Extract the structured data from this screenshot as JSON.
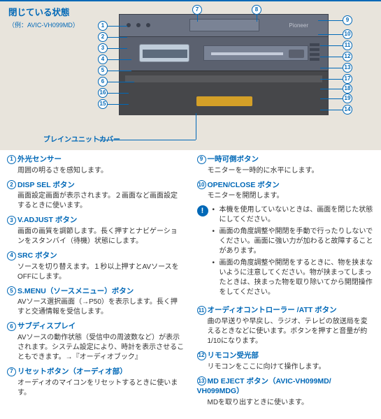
{
  "colors": {
    "accent": "#0068b7",
    "bg_top": "#e8e4dc",
    "device": "#5b616f",
    "device_dark": "#46474a"
  },
  "header": {
    "title": "閉じている状態",
    "subtitle": "（例：AVIC-VH099MD）",
    "brain_cover_label": "ブレインユニットカバー",
    "logo_text": "Pioneer"
  },
  "markers": [
    "1",
    "2",
    "3",
    "4",
    "5",
    "6",
    "7",
    "8",
    "9",
    "10",
    "11",
    "12",
    "13",
    "14",
    "15",
    "16",
    "17",
    "18",
    "19"
  ],
  "left": [
    {
      "n": "1",
      "title": "外光センサー",
      "body": "周囲の明るさを感知します。"
    },
    {
      "n": "2",
      "title": "DISP SEL ボタン",
      "body": "画面設定画面が表示されます。２画面など画面設定するときに使います。"
    },
    {
      "n": "3",
      "title": "V.ADJUST ボタン",
      "body": "画面の画質を調節します。長く押すとナビゲーションをスタンバイ（待機）状態にします。"
    },
    {
      "n": "4",
      "title": "SRC ボタン",
      "body": "ソースを切り替えます。１秒以上押すとAVソースをOFFにします。"
    },
    {
      "n": "5",
      "title": "S.MENU（ソースメニュー）ボタン",
      "body": "AVソース選択画面（→P50）を表示します。長く押すと交通情報を受信します。"
    },
    {
      "n": "6",
      "title": "サブディスプレイ",
      "body": "AVソースの動作状態（受信中の周波数など）が表示されます。システム設定により、時計を表示させることもできます。→『オーディオブック』"
    },
    {
      "n": "7",
      "title": "リセットボタン（オーディオ部）",
      "body": "オーディオのマイコンをリセットするときに使います。"
    }
  ],
  "right": [
    {
      "n": "9",
      "title": "一時可倒ボタン",
      "body": "モニターを一時的に水平にします。"
    },
    {
      "n": "10",
      "title": "OPEN/CLOSE ボタン",
      "body": "モニターを開閉します。"
    }
  ],
  "note": [
    "本機を使用していないときは、画面を閉じた状態にしてください。",
    "画面の角度調整や開閉を手動で行ったりしないでください。画面に強い力が加わると故障することがあります。",
    "画面の角度調整や開閉をするときに、物を挟まないように注意してください。物が挟まってしまったときは、挟まった物を取り除いてから開閉操作をしてください。"
  ],
  "right2": [
    {
      "n": "11",
      "title": "オーディオコントローラー /ATT ボタン",
      "body": "曲の早送りや早戻し、ラジオ、テレビの放送局を変えるときなどに使います。ボタンを押すと音量が約1/10になります。"
    },
    {
      "n": "12",
      "title": "リモコン受光部",
      "body": "リモコンをここに向けて操作します。"
    },
    {
      "n": "13",
      "title": "MD EJECT ボタン（AVIC-VH099MD/ VH099MDG）",
      "body": "MDを取り出すときに使います。"
    }
  ]
}
